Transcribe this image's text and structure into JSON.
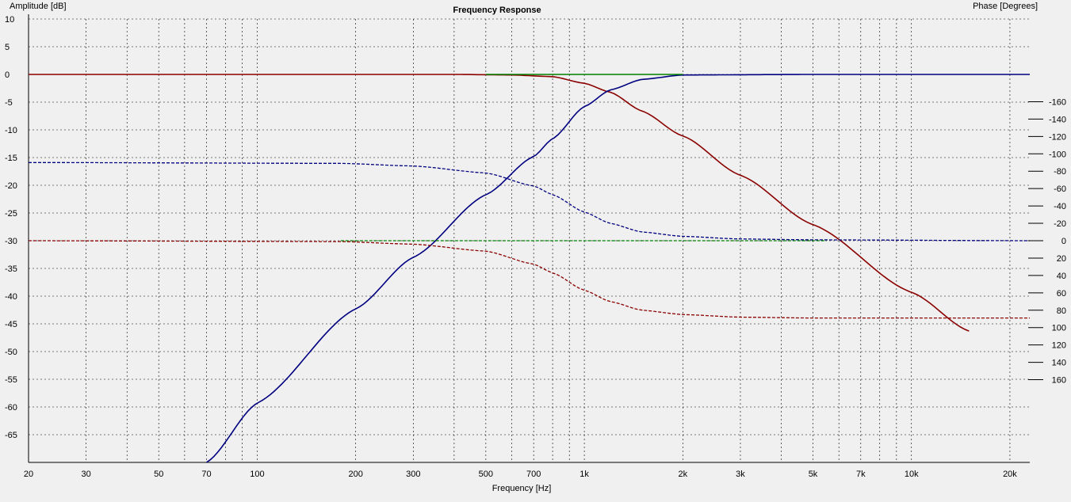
{
  "chart_data": {
    "type": "line",
    "title": "Frequency Response",
    "xlabel": "Frequency [Hz]",
    "ylabel": "Amplitude [dB]",
    "y2label": "Phase [Degrees]",
    "x_scale": "log",
    "xlim": [
      20,
      23000
    ],
    "ylim": [
      -70,
      10
    ],
    "y2lim": [
      -180,
      180
    ],
    "x_ticks": [
      {
        "value": 20,
        "label": "20"
      },
      {
        "value": 30,
        "label": "30"
      },
      {
        "value": 50,
        "label": "50"
      },
      {
        "value": 70,
        "label": "70"
      },
      {
        "value": 100,
        "label": "100"
      },
      {
        "value": 200,
        "label": "200"
      },
      {
        "value": 300,
        "label": "300"
      },
      {
        "value": 500,
        "label": "500"
      },
      {
        "value": 700,
        "label": "700"
      },
      {
        "value": 1000,
        "label": "1k"
      },
      {
        "value": 2000,
        "label": "2k"
      },
      {
        "value": 3000,
        "label": "3k"
      },
      {
        "value": 5000,
        "label": "5k"
      },
      {
        "value": 7000,
        "label": "7k"
      },
      {
        "value": 10000,
        "label": "10k"
      },
      {
        "value": 20000,
        "label": "20k"
      }
    ],
    "y_ticks": [
      10,
      5,
      0,
      -5,
      -10,
      -15,
      -20,
      -25,
      -30,
      -35,
      -40,
      -45,
      -50,
      -55,
      -60,
      -65
    ],
    "y2_ticks": [
      160,
      140,
      120,
      100,
      80,
      60,
      40,
      20,
      0,
      -20,
      -40,
      -60,
      -80,
      -100,
      -120,
      -140,
      -160
    ],
    "grid": true,
    "colors": {
      "background": "#f0f0f0",
      "grid": "#000000",
      "red": "#8b0000",
      "blue": "#000080",
      "green": "#008000"
    },
    "series": [
      {
        "axis": "left",
        "color": "#8b0000",
        "style": "solid",
        "x": [
          20,
          100,
          400,
          600,
          800,
          1000,
          1200,
          1500,
          2000,
          3000,
          5000,
          10000,
          15000
        ],
        "y": [
          0,
          0,
          0,
          -0.1,
          -0.4,
          -1.6,
          -3.2,
          -6.6,
          -11.1,
          -18.2,
          -27.1,
          -39.3,
          -46.3
        ]
      },
      {
        "axis": "left",
        "color": "#000080",
        "style": "solid",
        "x": [
          70,
          100,
          200,
          300,
          500,
          700,
          800,
          1000,
          1200,
          1500,
          2000,
          5000,
          23000
        ],
        "y": [
          -70,
          -59.3,
          -42.3,
          -33,
          -21.7,
          -14.8,
          -11.6,
          -5.8,
          -2.8,
          -0.9,
          -0.1,
          0,
          0
        ]
      },
      {
        "axis": "left",
        "color": "#008000",
        "style": "solid",
        "x": [
          500,
          1000,
          2000
        ],
        "y": [
          0,
          0,
          0
        ]
      },
      {
        "axis": "right",
        "color": "#8b0000",
        "style": "dashed",
        "x": [
          20,
          180,
          300,
          500,
          700,
          800,
          1000,
          1200,
          1500,
          2000,
          3000,
          5000,
          23000
        ],
        "y": [
          0,
          1,
          4,
          12,
          27,
          37,
          57,
          70,
          80,
          85,
          88,
          89,
          89
        ]
      },
      {
        "axis": "right",
        "color": "#000080",
        "style": "dashed",
        "x": [
          20,
          180,
          300,
          500,
          700,
          800,
          1000,
          1200,
          1500,
          2000,
          3000,
          5000,
          23000
        ],
        "y": [
          -90,
          -89,
          -86,
          -78,
          -63,
          -53,
          -33,
          -20,
          -10,
          -5,
          -2,
          -1,
          0
        ]
      },
      {
        "axis": "right",
        "color": "#008000",
        "style": "dashed",
        "x": [
          180,
          1000,
          5500
        ],
        "y": [
          0,
          0,
          0
        ]
      }
    ]
  }
}
